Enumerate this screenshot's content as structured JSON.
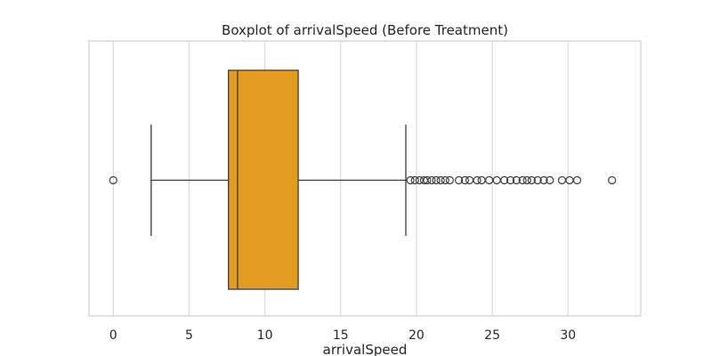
{
  "chart_data": {
    "type": "box",
    "title": "Boxplot of arrivalSpeed (Before Treatment)",
    "xlabel": "arrivalSpeed",
    "ylabel": "",
    "orientation": "horizontal",
    "xlim": [
      -1.6,
      34.8
    ],
    "xticks": [
      0,
      5,
      10,
      15,
      20,
      25,
      30
    ],
    "grid": true,
    "box_color": "#e39c21",
    "line_color": "#3c3c3c",
    "grid_color": "#d9d9d9",
    "box": {
      "whisker_low": 2.5,
      "q1": 7.6,
      "median": 8.2,
      "q3": 12.2,
      "whisker_high": 19.3
    },
    "outliers": [
      0.0,
      19.6,
      19.9,
      20.2,
      20.5,
      20.7,
      21.0,
      21.3,
      21.6,
      21.9,
      22.2,
      22.8,
      23.2,
      23.5,
      24.0,
      24.3,
      24.8,
      25.3,
      25.8,
      26.2,
      26.6,
      27.0,
      27.3,
      27.6,
      28.0,
      28.4,
      28.8,
      29.6,
      30.1,
      30.6,
      32.9
    ]
  }
}
